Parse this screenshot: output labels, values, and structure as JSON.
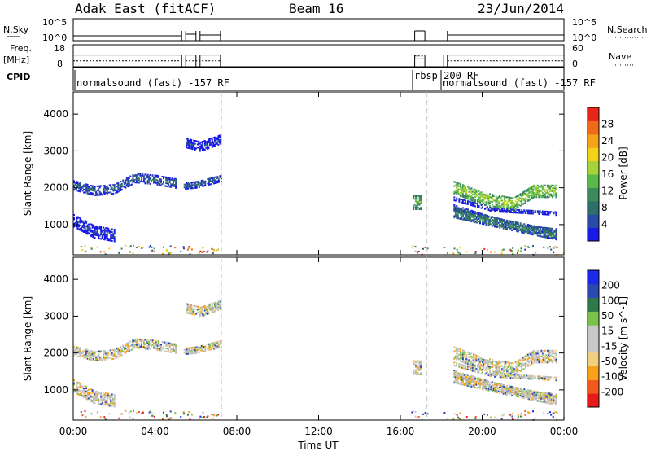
{
  "header": {
    "title": "Adak East (fitACF)",
    "beam": "Beam 16",
    "date": "23/Jun/2014"
  },
  "top_panels": {
    "nsky_label": "N.Sky",
    "nsearch_label": "N.Search",
    "nsky_ticks": [
      "10^5",
      "10^0"
    ],
    "nsky_right_ticks": [
      "10^5",
      "10^0"
    ],
    "freq_label": "Freq.",
    "freq_unit": "[MHz]",
    "freq_ticks": [
      "18",
      "8"
    ],
    "nave_label": "Nave",
    "nave_ticks": [
      "60",
      "0"
    ],
    "cpid_label": "CPID",
    "cpid_segments": [
      {
        "text": "normalsound (fast) -157 RF"
      },
      {
        "text": "rbsp 200 RF"
      },
      {
        "text": "normalsound (fast) -157 RF"
      }
    ]
  },
  "chart_data": [
    {
      "type": "heatmap",
      "title": "",
      "ylabel": "Slant Range [km]",
      "xlabel": "",
      "ylim": [
        180,
        4600
      ],
      "xlim_hours": [
        0,
        24
      ],
      "yticks": [
        "4000",
        "3000",
        "2000",
        "1000"
      ],
      "ytick_values": [
        4000,
        3000,
        2000,
        1000
      ],
      "colorbar_label": "Power [dB]",
      "colorbar_ticks": [
        "28",
        "24",
        "20",
        "16",
        "12",
        "8",
        "4"
      ],
      "colorbar_colors": [
        "#1a1ae6",
        "#2a4aa8",
        "#2f6f6a",
        "#3d8a5c",
        "#59b94a",
        "#a6d23b",
        "#f3d31a",
        "#f7a21b",
        "#f06a1a",
        "#e62619"
      ],
      "bands": [
        {
          "t": [
            0.0,
            1.0,
            2.0,
            3.0,
            4.0,
            5.0
          ],
          "r": [
            2050,
            1900,
            1950,
            2250,
            2200,
            2100
          ],
          "width": 250,
          "level": 2
        },
        {
          "t": [
            0.0,
            1.0,
            2.0
          ],
          "r": [
            1100,
            800,
            700
          ],
          "width": 350,
          "level": 1
        },
        {
          "t": [
            5.4,
            6.0,
            7.2
          ],
          "r": [
            2050,
            2080,
            2250
          ],
          "width": 200,
          "level": 2
        },
        {
          "t": [
            5.5,
            6.2,
            7.2
          ],
          "r": [
            3200,
            3100,
            3300
          ],
          "width": 250,
          "level": 1
        },
        {
          "t": [
            16.6,
            17.0
          ],
          "r": [
            1600,
            1600
          ],
          "width": 400,
          "level": 4
        },
        {
          "t": [
            18.6,
            20.0,
            21.5,
            22.5,
            23.6
          ],
          "r": [
            2000,
            1700,
            1550,
            1900,
            1900
          ],
          "width": 350,
          "level": 5
        },
        {
          "t": [
            18.6,
            20.0,
            22.0,
            23.6
          ],
          "r": [
            1450,
            1200,
            900,
            800
          ],
          "width": 200,
          "level": 2
        },
        {
          "t": [
            18.6,
            20.5,
            23.6
          ],
          "r": [
            1700,
            1400,
            1300
          ],
          "width": 120,
          "level": 1
        },
        {
          "t": [
            18.6,
            21.0,
            23.6
          ],
          "r": [
            1300,
            1000,
            700
          ],
          "width": 250,
          "level": 3
        }
      ]
    },
    {
      "type": "heatmap",
      "title": "",
      "ylabel": "Slant Range [km]",
      "xlabel": "Time UT",
      "ylim": [
        180,
        4600
      ],
      "xlim_hours": [
        0,
        24
      ],
      "yticks": [
        "4000",
        "3000",
        "2000",
        "1000"
      ],
      "ytick_values": [
        4000,
        3000,
        2000,
        1000
      ],
      "xticks": [
        "00:00",
        "04:00",
        "08:00",
        "12:00",
        "16:00",
        "20:00",
        "00:00"
      ],
      "xtick_values": [
        0,
        4,
        8,
        12,
        16,
        20,
        24
      ],
      "colorbar_label": "Velocity [m s^-1]",
      "colorbar_ticks": [
        "200",
        "100",
        "50",
        "15",
        "-15",
        "-50",
        "-100",
        "-200"
      ],
      "colorbar_colors": [
        "#e61a1a",
        "#f05a1a",
        "#f7a01a",
        "#f3d080",
        "#c8c8c8",
        "#c8c8c8",
        "#7ac24a",
        "#2f7a4a",
        "#2a4ab0",
        "#1a2ae6"
      ],
      "gray_color": "#c0c0c0"
    }
  ],
  "time_axis_label": "Time UT"
}
